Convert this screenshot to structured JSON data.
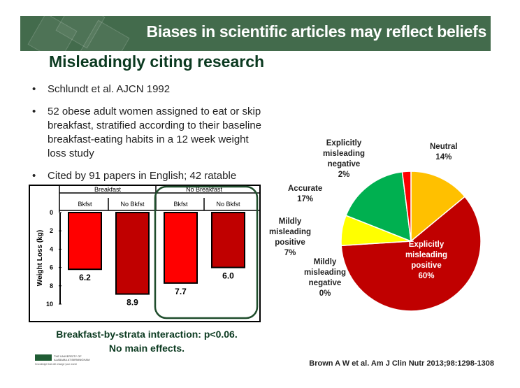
{
  "slide": {
    "title": "Biases in scientific articles may reflect beliefs",
    "subtitle": "Misleadingly citing research",
    "bullets": [
      "Schlundt et al. AJCN 1992",
      "52 obese adult women assigned to eat or skip breakfast, stratified according to their baseline breakfast-eating habits in a 12 week weight loss study",
      "Cited by 91 papers in English; 42 ratable"
    ],
    "caption_line1": "Breakfast-by-strata interaction: p<0.06.",
    "caption_line2": "No main effects.",
    "reference": "Brown A W et al. Am J Clin Nutr 2013;98:1298-1308",
    "logo": "UAB THE UNIVERSITY OF ALABAMA AT BIRMINGHAM Knowledge that will change your world"
  },
  "chart_data": [
    {
      "type": "bar",
      "group_labels": [
        "Breakfast",
        "No Breakfast"
      ],
      "categories": [
        "Bkfst",
        "No Bkfst",
        "Bkfst",
        "No Bkfst"
      ],
      "values": [
        6.2,
        8.9,
        7.7,
        6.0
      ],
      "data_labels": [
        "6.2",
        "8.9",
        "7.7",
        "6.0"
      ],
      "ylabel": "Weight Loss (kg)",
      "ylim": [
        0,
        10
      ],
      "y_inverted": true,
      "yticks": [
        "0",
        "2",
        "4",
        "6",
        "8",
        "10"
      ],
      "colors": [
        "#ff0000",
        "#c00000",
        "#ff0000",
        "#c00000"
      ],
      "highlight_group": "No Breakfast",
      "highlight_color": "#1f4d2c"
    },
    {
      "type": "pie",
      "slices": [
        {
          "label": "Neutral",
          "value": 14,
          "text": "14%",
          "color": "#ffc000"
        },
        {
          "label": "Explicitly misleading positive",
          "value": 60,
          "text": "60%",
          "color": "#c00000"
        },
        {
          "label": "Mildly misleading negative",
          "value": 0,
          "text": "0%",
          "color": "#ff8c00"
        },
        {
          "label": "Mildly misleading positive",
          "value": 7,
          "text": "7%",
          "color": "#ffff00"
        },
        {
          "label": "Accurate",
          "value": 17,
          "text": "17%",
          "color": "#00b050"
        },
        {
          "label": "Explicitly misleading negative",
          "value": 2,
          "text": "2%",
          "color": "#ff0000"
        }
      ]
    }
  ]
}
